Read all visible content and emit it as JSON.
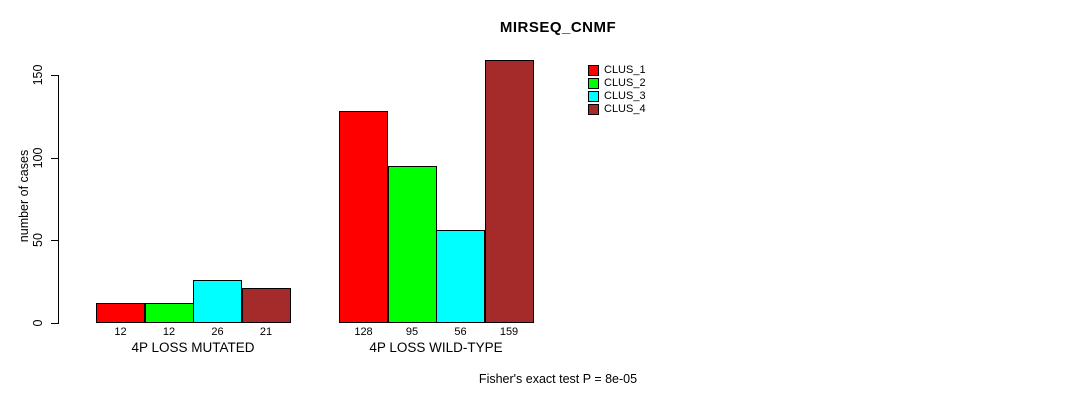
{
  "chart_data": {
    "type": "bar",
    "title": "MIRSEQ_CNMF",
    "xlabel": "",
    "ylabel": "number of cases",
    "categories": [
      "4P LOSS MUTATED",
      "4P LOSS WILD-TYPE"
    ],
    "series": [
      {
        "name": "CLUS_1",
        "color": "#FF0000",
        "values": [
          12,
          128
        ]
      },
      {
        "name": "CLUS_2",
        "color": "#00FF00",
        "values": [
          12,
          95
        ]
      },
      {
        "name": "CLUS_3",
        "color": "#00FFFF",
        "values": [
          26,
          56
        ]
      },
      {
        "name": "CLUS_4",
        "color": "#A52A2A",
        "values": [
          21,
          159
        ]
      }
    ],
    "yticks": [
      0,
      50,
      100,
      150
    ],
    "ylim": [
      0,
      160
    ],
    "grid": false,
    "show_bar_value_labels": true,
    "legend_position": "top-right",
    "annotation": "Fisher's exact test P = 8e-05",
    "background": "#FFFFFF",
    "bar_border_color": "#000000"
  }
}
